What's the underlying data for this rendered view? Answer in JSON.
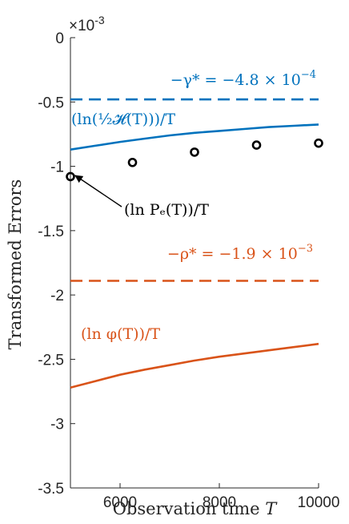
{
  "chart_data": {
    "type": "line",
    "xlabel": "Observation time T",
    "ylabel": "Transformed Errors",
    "y_exponent_label": "×10",
    "y_exponent_power": "-3",
    "xlim": [
      5000,
      10000
    ],
    "ylim": [
      -3.5,
      0
    ],
    "y_units": "x 10^-3",
    "x_ticks": [
      6000,
      8000,
      10000
    ],
    "x_tick_labels": [
      "6000",
      "8000",
      "10000"
    ],
    "y_ticks": [
      0,
      -0.5,
      -1,
      -1.5,
      -2,
      -2.5,
      -3,
      -3.5
    ],
    "y_tick_labels": [
      "0",
      "-0.5",
      "-1",
      "-1.5",
      "-2",
      "-2.5",
      "-3",
      "-3.5"
    ],
    "grid": false,
    "colors": {
      "blue": "#0072BD",
      "orange": "#D95319",
      "black": "#000000",
      "axis": "#262626"
    },
    "series": [
      {
        "style": "dashed",
        "color": "#0072BD",
        "x": [
          5000,
          10000
        ],
        "y": [
          -0.48,
          -0.48
        ]
      },
      {
        "style": "solid",
        "color": "#0072BD",
        "x": [
          5000,
          5500,
          6000,
          6500,
          7000,
          7500,
          8000,
          8500,
          9000,
          9500,
          10000
        ],
        "y": [
          -0.87,
          -0.84,
          -0.81,
          -0.785,
          -0.76,
          -0.74,
          -0.725,
          -0.71,
          -0.695,
          -0.685,
          -0.675
        ]
      },
      {
        "style": "markers",
        "color": "#000000",
        "x": [
          5000,
          6250,
          7500,
          8750,
          10000
        ],
        "y": [
          -1.08,
          -0.97,
          -0.89,
          -0.835,
          -0.82
        ]
      },
      {
        "style": "dashed",
        "color": "#D95319",
        "x": [
          5000,
          10000
        ],
        "y": [
          -1.89,
          -1.89
        ]
      },
      {
        "style": "solid",
        "color": "#D95319",
        "x": [
          5000,
          5500,
          6000,
          6500,
          7000,
          7500,
          8000,
          8500,
          9000,
          9500,
          10000
        ],
        "y": [
          -2.72,
          -2.67,
          -2.62,
          -2.58,
          -2.545,
          -2.51,
          -2.48,
          -2.455,
          -2.43,
          -2.405,
          -2.38
        ]
      }
    ],
    "annotations": {
      "gamma_pre": "−γ* = −4.8 × 10",
      "gamma_exp": "−4",
      "H_label": "(ln(½𝓗(T)))/T",
      "Pe_label": "(ln Pₑ(T))/T",
      "rho_pre": "−ρ* = −1.9 × 10",
      "rho_exp": "−3",
      "phi_label": "(ln φ(T))/T"
    }
  }
}
